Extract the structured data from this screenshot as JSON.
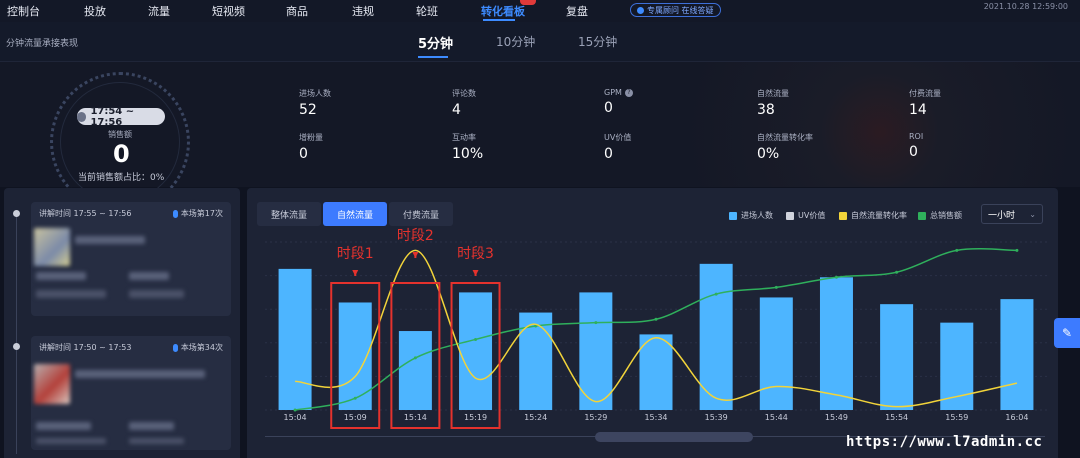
{
  "nav": {
    "items": [
      "控制台",
      "投放",
      "流量",
      "短视频",
      "商品",
      "违规",
      "轮班",
      "转化看板",
      "复盘"
    ],
    "active": "转化看板",
    "vip_label": "专属顾问 在线答疑",
    "datetime": "2021.10.28 12:59:00"
  },
  "subheader": {
    "title": "分钟流量承接表现",
    "periods": [
      "5分钟",
      "10分钟",
      "15分钟"
    ],
    "active_period": "5分钟"
  },
  "summary": {
    "time_range": "17:54 ~ 17:56",
    "sales_label": "销售额",
    "sales_value": "0",
    "sales_ratio": "当前销售额占比：0%"
  },
  "stats": [
    {
      "label": "进场人数",
      "value": "52"
    },
    {
      "label": "评论数",
      "value": "4"
    },
    {
      "label": "GPM",
      "value": "0"
    },
    {
      "label": "自然流量",
      "value": "38"
    },
    {
      "label": "付费流量",
      "value": "14"
    },
    {
      "label": "增粉量",
      "value": "0"
    },
    {
      "label": "互动率",
      "value": "10%"
    },
    {
      "label": "UV价值",
      "value": "0"
    },
    {
      "label": "自然流量转化率",
      "value": "0%"
    },
    {
      "label": "ROI",
      "value": "0"
    }
  ],
  "segments": [
    {
      "time": "讲解时间 17:55 ~ 17:56",
      "count": "本场第17次"
    },
    {
      "time": "讲解时间 17:50 ~ 17:53",
      "count": "本场第34次"
    }
  ],
  "chart_panel": {
    "tabs": [
      "整体流量",
      "自然流量",
      "付费流量"
    ],
    "active_tab": "自然流量",
    "legend": [
      {
        "name": "进场人数",
        "color": "#4db5ff"
      },
      {
        "name": "UV价值",
        "color": "#d0d3dc"
      },
      {
        "name": "自然流量转化率",
        "color": "#f2d43a"
      },
      {
        "name": "总销售额",
        "color": "#2fb05c"
      }
    ],
    "range": "一小时",
    "annotations": [
      "时段1",
      "时段2",
      "时段3"
    ]
  },
  "chart_data": {
    "type": "bar",
    "categories": [
      "15:04",
      "15:09",
      "15:14",
      "15:19",
      "15:24",
      "15:29",
      "15:34",
      "15:39",
      "15:44",
      "15:49",
      "15:54",
      "15:59",
      "16:04"
    ],
    "series": [
      {
        "name": "进场人数",
        "values": [
          0.84,
          0.64,
          0.47,
          0.7,
          0.58,
          0.7,
          0.45,
          0.87,
          0.67,
          0.79,
          0.63,
          0.52,
          0.66
        ]
      },
      {
        "name": "自然流量转化率",
        "values": [
          0.17,
          0.2,
          0.95,
          0.19,
          0.51,
          0.05,
          0.43,
          0.07,
          0.14,
          0.09,
          0.02,
          0.08,
          0.16
        ]
      },
      {
        "name": "总销售额",
        "values": [
          0.0,
          0.07,
          0.31,
          0.42,
          0.5,
          0.52,
          0.54,
          0.69,
          0.73,
          0.79,
          0.82,
          0.95,
          0.95
        ]
      }
    ],
    "ylim": [
      0,
      1
    ]
  },
  "watermark": "https://www.l7admin.cc"
}
